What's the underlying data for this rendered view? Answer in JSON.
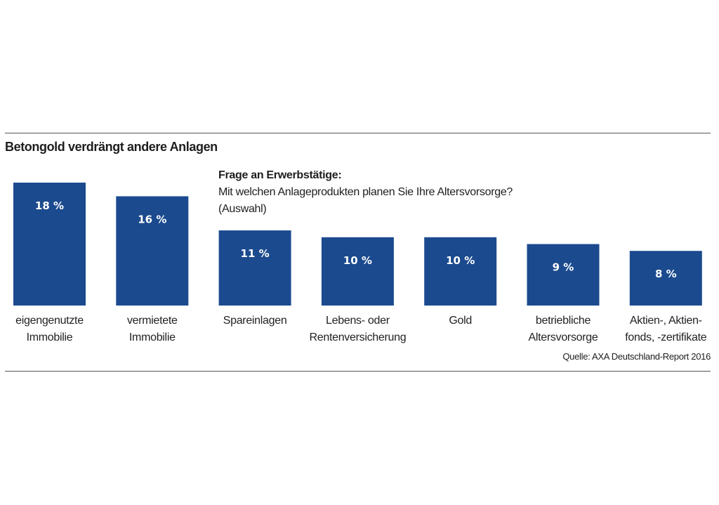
{
  "chart_data": {
    "type": "bar",
    "title": "Betongold verdrängt andere Anlagen",
    "subtitle_heading": "Frage an Erwerbstätige:",
    "subtitle_lines": [
      "Mit welchen Anlageprodukten planen Sie Ihre Altersvorsorge?",
      "(Auswahl)"
    ],
    "categories": [
      [
        "eigengenutzte",
        "Immobilie"
      ],
      [
        "vermietete",
        "Immobilie"
      ],
      [
        "Spareinlagen"
      ],
      [
        "Lebens- oder",
        "Rentenversicherung"
      ],
      [
        "Gold"
      ],
      [
        "betriebliche",
        "Altersvorsorge"
      ],
      [
        "Aktien-, Aktien-",
        "fonds, -zertifikate"
      ]
    ],
    "values": [
      18,
      16,
      11,
      10,
      10,
      9,
      8
    ],
    "value_labels": [
      "18 %",
      "16 %",
      "11 %",
      "10 %",
      "10 %",
      "9 %",
      "8 %"
    ],
    "unit": "%",
    "ylim": [
      0,
      18
    ],
    "grid": false,
    "bar_color": "#1b4a8e",
    "source": "Quelle: AXA Deutschland-Report 2016"
  }
}
